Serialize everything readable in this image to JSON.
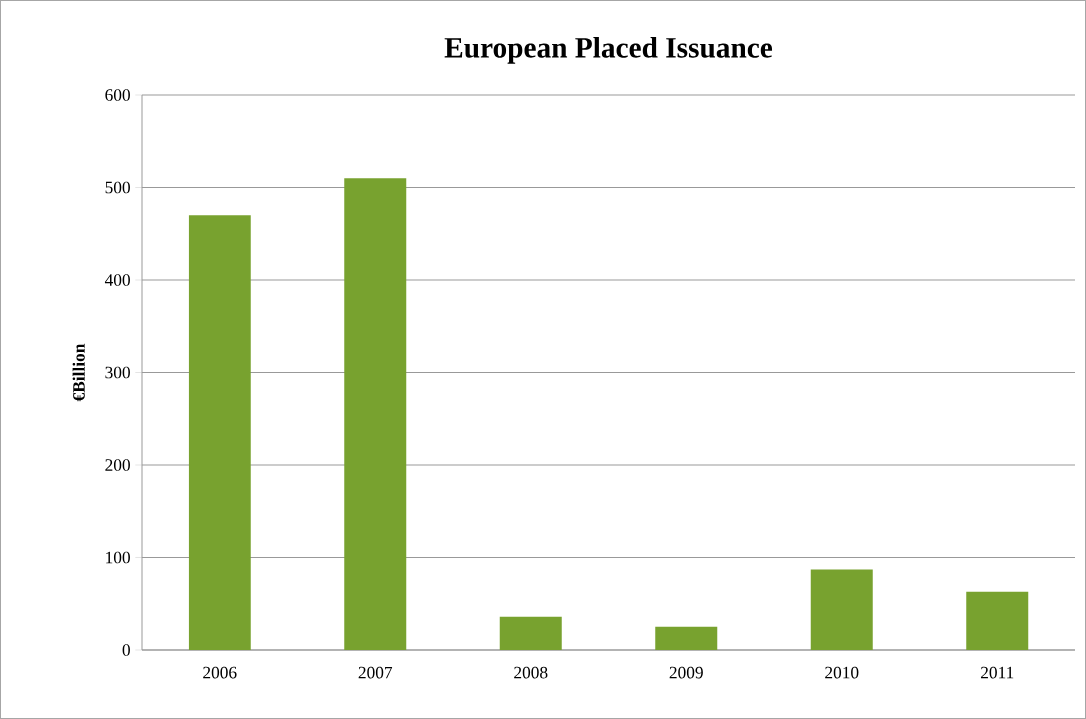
{
  "chart_data": {
    "type": "bar",
    "title": "European Placed Issuance",
    "ylabel": "€Billion",
    "categories": [
      "2006",
      "2007",
      "2008",
      "2009",
      "2010",
      "2011"
    ],
    "values": [
      470,
      510,
      36,
      25,
      87,
      63
    ],
    "color": "#78a22f",
    "ylim": [
      0,
      600
    ],
    "yticks": [
      0,
      100,
      200,
      300,
      400,
      500,
      600
    ],
    "grid": "y"
  }
}
